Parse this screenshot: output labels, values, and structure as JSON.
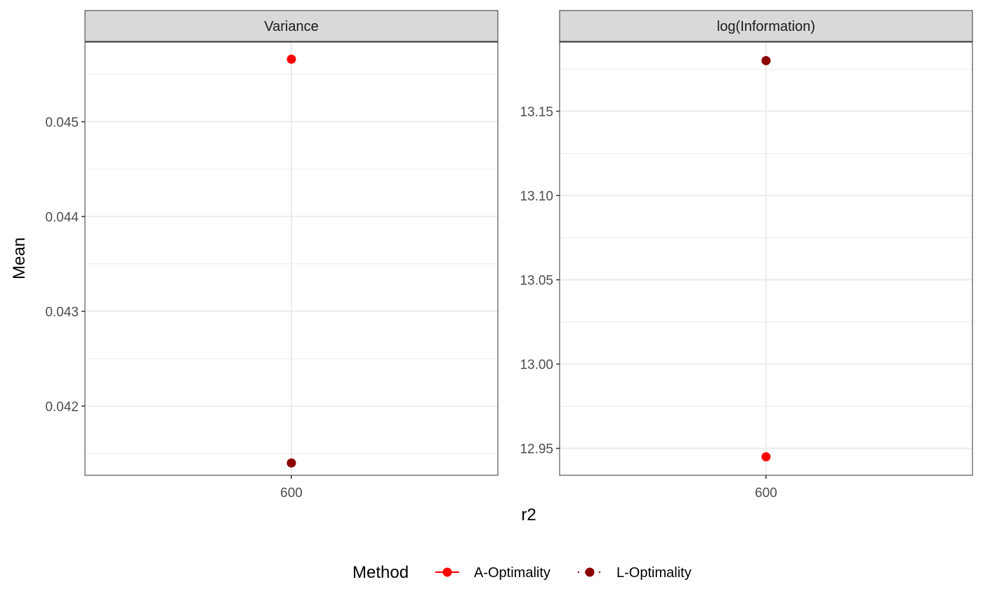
{
  "chart_data": {
    "type": "scatter",
    "x_label": "r2",
    "y_label": "Mean",
    "x_categories": [
      "600"
    ],
    "panels": [
      {
        "strip": "Variance",
        "ylim": [
          0.04127,
          0.04584
        ],
        "y_ticks": [
          0.042,
          0.043,
          0.044,
          0.045
        ],
        "y_tick_labels": [
          "0.042",
          "0.043",
          "0.044",
          "0.045"
        ],
        "points": [
          {
            "series": "A-Optimality",
            "x": "600",
            "y": 0.04566
          },
          {
            "series": "L-Optimality",
            "x": "600",
            "y": 0.0414
          }
        ]
      },
      {
        "strip": "log(Information)",
        "ylim": [
          12.934,
          13.191
        ],
        "y_ticks": [
          12.95,
          13.0,
          13.05,
          13.1,
          13.15
        ],
        "y_tick_labels": [
          "12.95",
          "13.00",
          "13.05",
          "13.10",
          "13.15"
        ],
        "points": [
          {
            "series": "A-Optimality",
            "x": "600",
            "y": 12.945
          },
          {
            "series": "L-Optimality",
            "x": "600",
            "y": 13.18
          }
        ]
      }
    ],
    "legend": {
      "title": "Method",
      "position": "bottom",
      "items": [
        {
          "label": "A-Optimality",
          "color": "#ff0000",
          "linetype": "solid"
        },
        {
          "label": "L-Optimality",
          "color": "#8b0000",
          "linetype": "dotted"
        }
      ]
    },
    "series_colors": {
      "A-Optimality": "#ff0000",
      "L-Optimality": "#8b0000"
    },
    "grid": true,
    "theme": "bw"
  }
}
